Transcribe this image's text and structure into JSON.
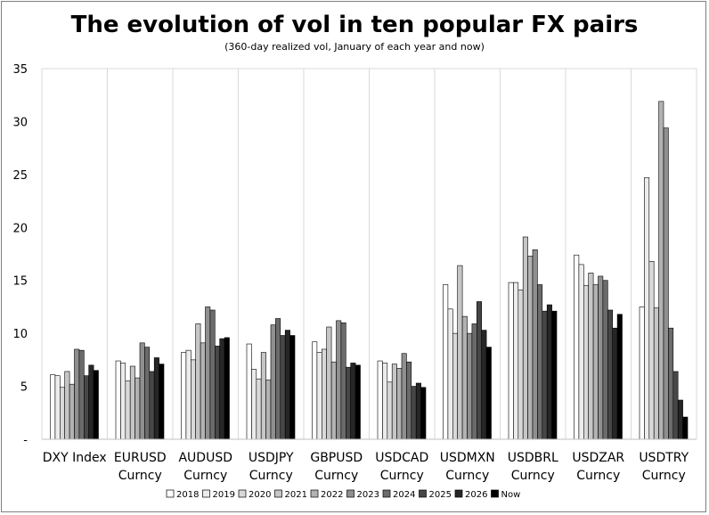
{
  "chart_data": {
    "type": "bar",
    "title": "The evolution of vol in ten popular FX pairs",
    "subtitle": "(360-day  realized vol, January  of each year and now)",
    "xlabel": "",
    "ylabel": "",
    "ylim": [
      0,
      35
    ],
    "yticks": [
      "-",
      "5",
      "10",
      "15",
      "20",
      "25",
      "30",
      "35"
    ],
    "grid": "vertical",
    "legend_position": "bottom",
    "categories": [
      [
        "DXY Index"
      ],
      [
        "EURUSD",
        "Curncy"
      ],
      [
        "AUDUSD",
        "Curncy"
      ],
      [
        "USDJPY",
        "Curncy"
      ],
      [
        "GBPUSD",
        "Curncy"
      ],
      [
        "USDCAD",
        "Curncy"
      ],
      [
        "USDMXN",
        "Curncy"
      ],
      [
        "USDBRL",
        "Curncy"
      ],
      [
        "USDZAR",
        "Curncy"
      ],
      [
        "USDTRY",
        "Curncy"
      ]
    ],
    "series": [
      {
        "name": "2018",
        "color": "#ffffff",
        "values": [
          6.1,
          7.4,
          8.2,
          9.0,
          9.2,
          7.4,
          14.6,
          14.8,
          17.4,
          12.5
        ]
      },
      {
        "name": "2019",
        "color": "#ececec",
        "values": [
          6.0,
          7.2,
          8.4,
          6.6,
          8.2,
          7.2,
          12.3,
          14.8,
          16.5,
          24.7
        ]
      },
      {
        "name": "2020",
        "color": "#d9d9d9",
        "values": [
          4.9,
          5.5,
          7.5,
          5.7,
          8.5,
          5.4,
          10.0,
          14.1,
          14.5,
          16.8
        ]
      },
      {
        "name": "2021",
        "color": "#c6c6c6",
        "values": [
          6.4,
          6.9,
          10.9,
          8.2,
          10.6,
          7.1,
          16.4,
          19.1,
          15.7,
          12.4
        ]
      },
      {
        "name": "2022",
        "color": "#b2b2b2",
        "values": [
          5.2,
          5.8,
          9.1,
          5.6,
          7.3,
          6.7,
          11.6,
          17.3,
          14.6,
          31.9
        ]
      },
      {
        "name": "2023",
        "color": "#8f8f8f",
        "values": [
          8.5,
          9.1,
          12.5,
          10.8,
          11.2,
          8.1,
          10.0,
          17.9,
          15.4,
          29.4
        ]
      },
      {
        "name": "2024",
        "color": "#6b6b6b",
        "values": [
          8.4,
          8.7,
          12.2,
          11.4,
          11.0,
          7.3,
          10.9,
          14.6,
          15.0,
          10.5
        ]
      },
      {
        "name": "2025",
        "color": "#474747",
        "values": [
          6.0,
          6.4,
          8.8,
          9.8,
          6.8,
          5.0,
          13.0,
          12.1,
          12.2,
          6.4
        ]
      },
      {
        "name": "2026",
        "color": "#262626",
        "values": [
          7.0,
          7.7,
          9.5,
          10.3,
          7.2,
          5.3,
          10.3,
          12.7,
          10.5,
          3.7
        ]
      },
      {
        "name": "Now",
        "color": "#000000",
        "values": [
          6.5,
          7.1,
          9.6,
          9.8,
          7.0,
          4.9,
          8.7,
          12.1,
          11.8,
          2.1
        ]
      }
    ]
  }
}
